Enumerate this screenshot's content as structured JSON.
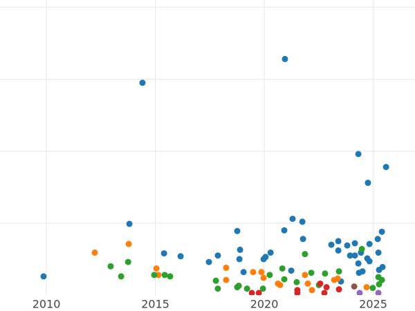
{
  "chart_data": {
    "type": "scatter",
    "xlim": [
      2007.87,
      2026.92
    ],
    "xticks": [
      2010,
      2015,
      2020,
      2025
    ],
    "ylim": [
      0,
      4.1
    ],
    "yticks": [
      1,
      2,
      3,
      4
    ],
    "grid": true,
    "series": [
      {
        "color": "#1f77b4",
        "x": [
          2009.87,
          2014.41,
          2013.81,
          2015.4,
          2016.16,
          2017.46,
          2017.87,
          2018.76,
          2018.89,
          2018.86,
          2019.05,
          2019.97,
          2020.06,
          2020.29,
          2020.95,
          2020.92,
          2021.3,
          2021.75,
          2021.78,
          2021.24,
          2023.08,
          2023.4,
          2023.4,
          2023.81,
          2023.94,
          2024.16,
          2024.16,
          2024.32,
          2024.32,
          2024.35,
          2024.51,
          2024.44,
          2024.76,
          2024.73,
          2024.83,
          2024.83,
          2025.21,
          2025.24,
          2025.4,
          2025.59,
          2025.27,
          2025.43,
          2023.52
        ],
        "values": [
          0.26,
          2.95,
          0.99,
          0.58,
          0.54,
          0.46,
          0.55,
          0.89,
          0.63,
          0.5,
          0.32,
          0.5,
          0.53,
          0.59,
          3.28,
          0.9,
          1.06,
          1.02,
          0.78,
          0.34,
          0.7,
          0.75,
          0.62,
          0.69,
          0.55,
          0.55,
          0.72,
          1.96,
          0.44,
          0.31,
          0.33,
          0.59,
          1.56,
          0.51,
          0.47,
          0.71,
          0.78,
          0.59,
          0.88,
          1.78,
          0.35,
          0.39,
          0.19
        ]
      },
      {
        "color": "#ff7f0e",
        "x": [
          2012.22,
          2013.78,
          2015.05,
          2015.14,
          2018.25,
          2018.25,
          2019.49,
          2019.87,
          2019.97,
          2020.63,
          2020.73,
          2021.87,
          2022.0,
          2022.19,
          2023.21,
          2023.37,
          2024.7
        ],
        "values": [
          0.59,
          0.71,
          0.37,
          0.28,
          0.38,
          0.21,
          0.32,
          0.32,
          0.24,
          0.16,
          0.14,
          0.28,
          0.16,
          0.07,
          0.21,
          0.23,
          0.11
        ]
      },
      {
        "color": "#2ca02c",
        "x": [
          2012.95,
          2013.43,
          2013.75,
          2014.95,
          2015.43,
          2015.68,
          2017.78,
          2017.87,
          2018.83,
          2018.76,
          2019.21,
          2019.94,
          2020.25,
          2020.83,
          2020.92,
          2021.49,
          2021.87,
          2022.16,
          2022.51,
          2022.79,
          2023.43,
          2024.48,
          2024.98,
          2025.24,
          2025.27,
          2025.4
        ],
        "values": [
          0.4,
          0.26,
          0.46,
          0.28,
          0.28,
          0.26,
          0.2,
          0.09,
          0.13,
          0.11,
          0.09,
          0.09,
          0.28,
          0.37,
          0.22,
          0.18,
          0.57,
          0.31,
          0.14,
          0.3,
          0.33,
          0.64,
          0.1,
          0.25,
          0.15,
          0.21
        ]
      },
      {
        "color": "#d62728",
        "x": [
          2019.43,
          2019.75,
          2021.52,
          2021.52,
          2022.57,
          2022.86,
          2022.76,
          2023.43
        ],
        "values": [
          0.03,
          0.03,
          0.07,
          0.03,
          0.16,
          0.11,
          0.03,
          0.08
        ]
      },
      {
        "color": "#9467bd",
        "x": [
          2024.38,
          2025.24
        ],
        "values": [
          0.03,
          0.03
        ]
      },
      {
        "color": "#8c564b",
        "x": [
          2024.13
        ],
        "values": [
          0.12
        ]
      }
    ]
  }
}
